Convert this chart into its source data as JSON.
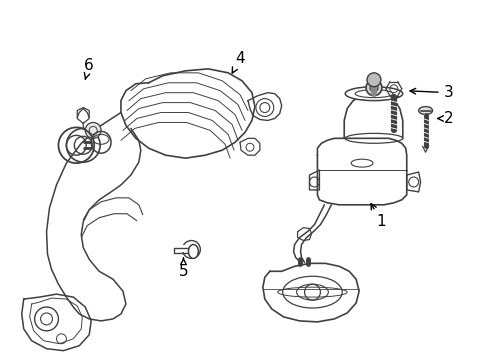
{
  "bg_color": "#ffffff",
  "lc": "#404040",
  "figsize": [
    4.89,
    3.6
  ],
  "dpi": 100,
  "xlim": [
    0,
    489
  ],
  "ylim": [
    0,
    360
  ]
}
